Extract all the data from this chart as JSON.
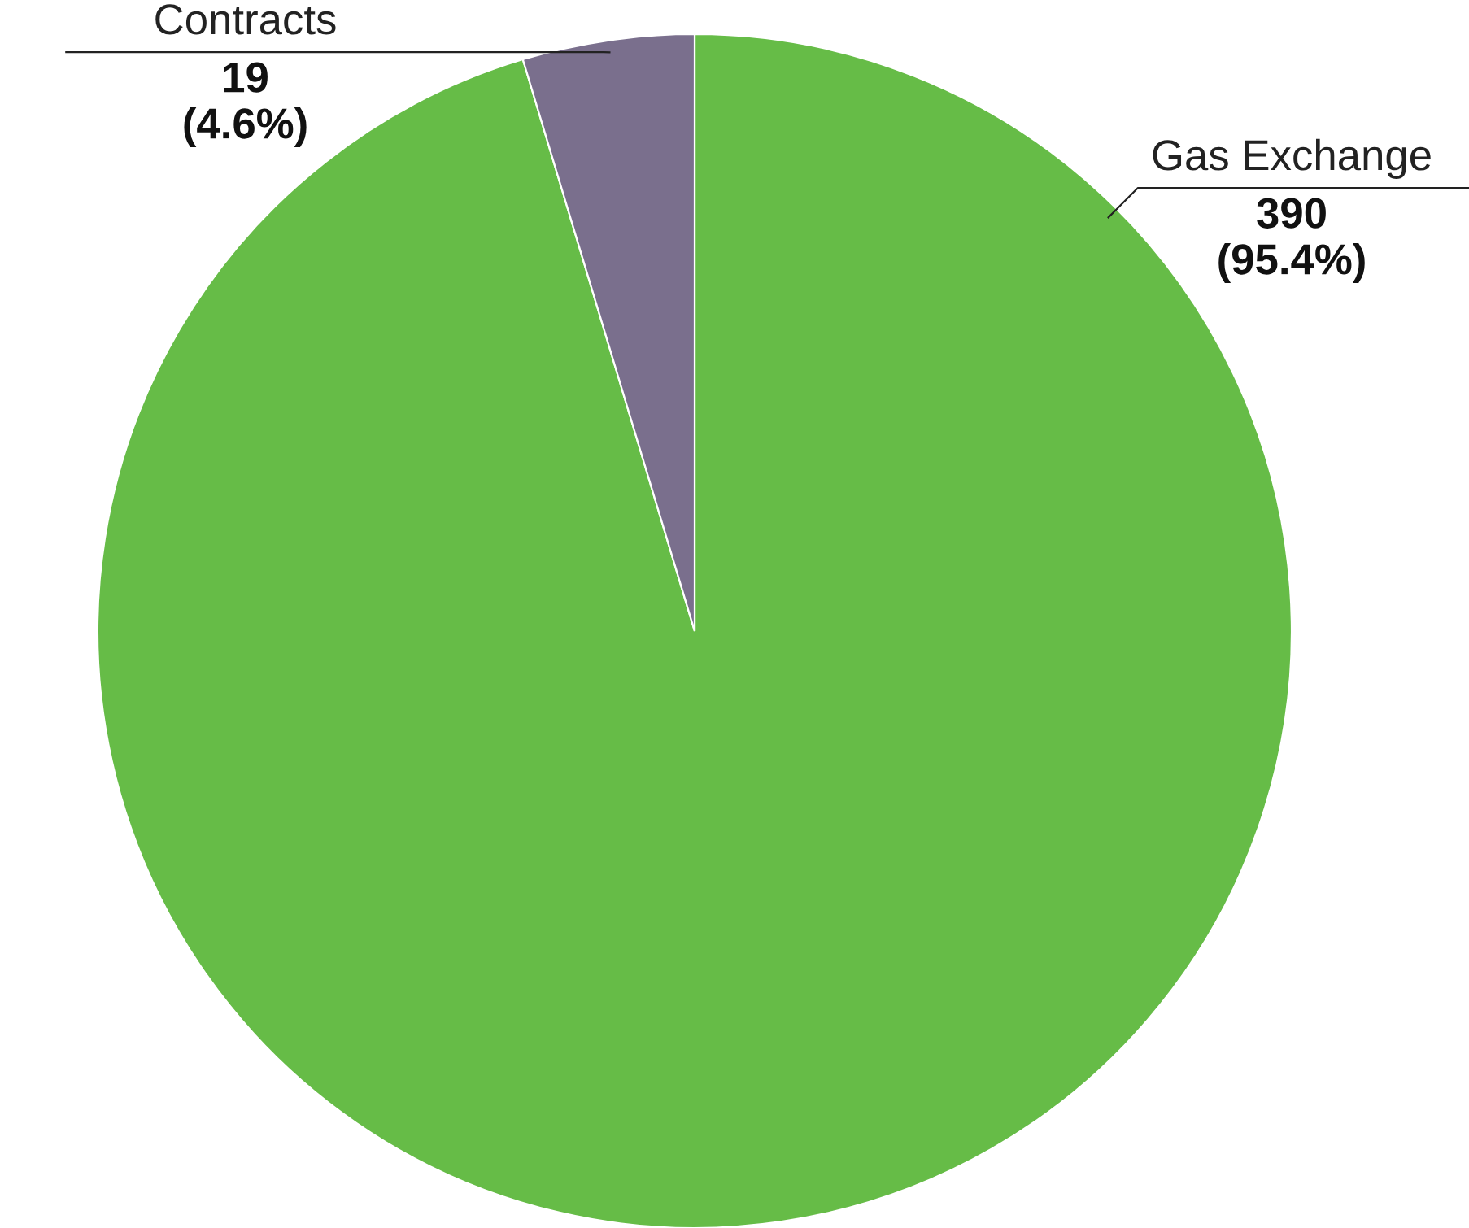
{
  "chart_data": {
    "type": "pie",
    "categories": [
      "Gas Exchange",
      "Contracts"
    ],
    "values": [
      390,
      19
    ],
    "colors": [
      "#66bc47",
      "#7a6f8d"
    ],
    "value_labels": [
      "390\n(95.4%)",
      "19\n(4.6%)"
    ]
  }
}
